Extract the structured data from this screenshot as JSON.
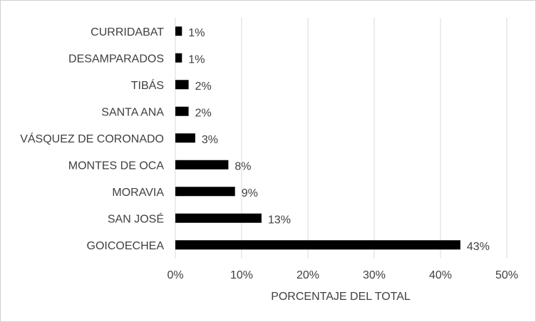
{
  "chart_data": {
    "type": "bar",
    "orientation": "horizontal",
    "categories": [
      "CURRIDABAT",
      "DESAMPARADOS",
      "TIBÁS",
      "SANTA ANA",
      "VÁSQUEZ DE CORONADO",
      "MONTES DE OCA",
      "MORAVIA",
      "SAN JOSÉ",
      "GOICOECHEA"
    ],
    "values": [
      1,
      1,
      2,
      2,
      3,
      8,
      9,
      13,
      43
    ],
    "value_labels": [
      "1%",
      "1%",
      "2%",
      "2%",
      "3%",
      "8%",
      "9%",
      "13%",
      "43%"
    ],
    "xlabel": "PORCENTAJE DEL TOTAL",
    "ylabel": "",
    "title": "",
    "xlim": [
      0,
      50
    ],
    "xticks": [
      0,
      10,
      20,
      30,
      40,
      50
    ],
    "xtick_labels": [
      "0%",
      "10%",
      "20%",
      "30%",
      "40%",
      "50%"
    ],
    "grid": "vertical",
    "legend": "none",
    "bar_color": "#000000"
  }
}
